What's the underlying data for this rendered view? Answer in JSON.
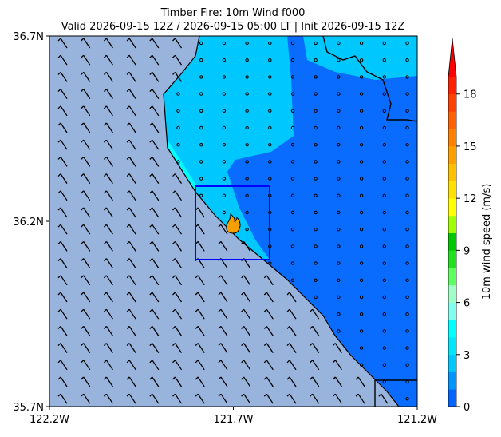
{
  "title": [
    "Timber Fire: 10m Wind f000",
    "Valid 2026-09-15 12Z / 2026-09-15 05:00 LT | Init 2026-09-15 12Z"
  ],
  "map": {
    "xlim": [
      -122.2,
      -121.2
    ],
    "ylim": [
      35.7,
      36.7
    ],
    "xticks": [
      {
        "value": -122.2,
        "label": "122.2W"
      },
      {
        "value": -121.7,
        "label": "121.7W"
      },
      {
        "value": -121.2,
        "label": "121.2W"
      }
    ],
    "yticks": [
      {
        "value": 35.7,
        "label": "35.7N"
      },
      {
        "value": 36.2,
        "label": "36.2N"
      },
      {
        "value": 36.7,
        "label": "36.7N"
      }
    ]
  },
  "colorbar": {
    "label": "10m wind speed (m/s)",
    "levels": [
      0,
      1,
      2,
      3,
      4,
      5,
      6,
      7,
      8,
      9,
      10,
      11,
      12,
      13,
      14,
      15,
      16,
      17,
      18,
      19
    ],
    "colors": [
      "#0064ff",
      "#0096ff",
      "#00c8ff",
      "#00e6ff",
      "#00ffff",
      "#80fff0",
      "#a0ffc8",
      "#60ff60",
      "#20e020",
      "#00c800",
      "#a0ff00",
      "#ffff00",
      "#ffe000",
      "#ffc000",
      "#ffa000",
      "#ff8000",
      "#ff6000",
      "#ff4000",
      "#ff2000"
    ],
    "extend_color": "#ff0000",
    "ticks": [
      0,
      3,
      6,
      9,
      12,
      15,
      18
    ]
  }
}
